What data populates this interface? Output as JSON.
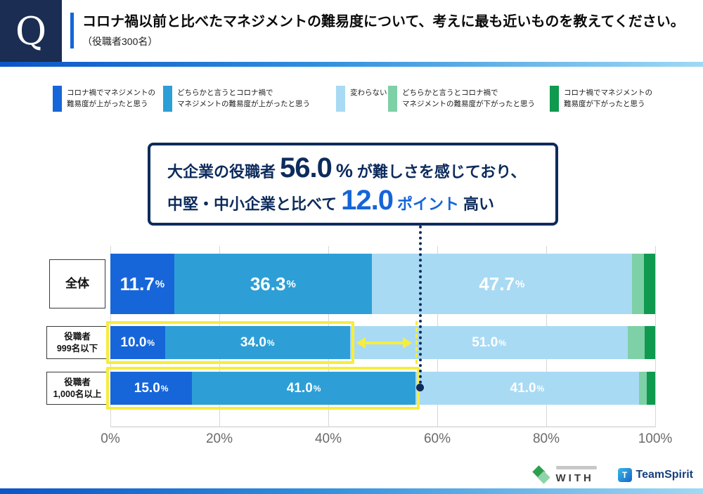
{
  "header": {
    "q_mark": "Q",
    "title_emphasis": "コロナ禍以前と比べたマネジメントの難易度",
    "title_rest": "について、考えに最も近いものを教えてください。",
    "subtitle": "（役職者300名）"
  },
  "legend": [
    {
      "color": "#1766d9",
      "label1": "コロナ禍でマネジメントの",
      "label2": "難易度が上がったと思う"
    },
    {
      "color": "#2d9fd6",
      "label1": "どちらかと言うとコロナ禍で",
      "label2": "マネジメントの難易度が上がったと思う"
    },
    {
      "color": "#a9daf3",
      "label1": "変わらない",
      "label2": ""
    },
    {
      "color": "#7ed0a6",
      "label1": "どちらかと言うとコロナ禍で",
      "label2": "マネジメントの難易度が下がったと思う"
    },
    {
      "color": "#0f9a50",
      "label1": "コロナ禍でマネジメントの",
      "label2": "難易度が下がったと思う"
    }
  ],
  "callout": {
    "line1_pre": "大企業の役職者",
    "line1_num": "56.0",
    "line1_unit": "%",
    "line1_post": "が難しさを感じており、",
    "line2_pre": "中堅・中小企業と比べて",
    "line2_num": "12.0",
    "line2_unit": "ポイント",
    "line2_post": "高い"
  },
  "row_labels": [
    {
      "line1": "全体",
      "line2": ""
    },
    {
      "line1": "役職者",
      "line2": "999名以下"
    },
    {
      "line1": "役職者",
      "line2": "1,000名以上"
    }
  ],
  "chart_data": {
    "type": "bar",
    "stacked": true,
    "orientation": "horizontal",
    "xlim": [
      0,
      100
    ],
    "x_ticks": [
      "0%",
      "20%",
      "40%",
      "60%",
      "80%",
      "100%"
    ],
    "categories": [
      "全体",
      "役職者999名以下",
      "役職者1,000名以上"
    ],
    "series": [
      {
        "name": "コロナ禍でマネジメントの難易度が上がったと思う",
        "color": "#1766d9",
        "values": [
          11.7,
          10.0,
          15.0
        ]
      },
      {
        "name": "どちらかと言うとコロナ禍でマネジメントの難易度が上がったと思う",
        "color": "#2d9fd6",
        "values": [
          36.3,
          34.0,
          41.0
        ]
      },
      {
        "name": "変わらない",
        "color": "#a9daf3",
        "values": [
          47.7,
          51.0,
          41.0
        ]
      },
      {
        "name": "どちらかと言うとコロナ禍でマネジメントの難易度が下がったと思う",
        "color": "#7ed0a6",
        "values": [
          2.3,
          3.0,
          1.5
        ],
        "estimated": true
      },
      {
        "name": "コロナ禍でマネジメントの難易度が下がったと思う",
        "color": "#0f9a50",
        "values": [
          2.0,
          2.0,
          1.5
        ],
        "estimated": true
      }
    ]
  },
  "annotations": {
    "highlight_color": "#f6ed3e",
    "pointer_color": "#0d2b5c",
    "highlights": [
      {
        "row": 1,
        "from_pct": 0,
        "to_pct": 44.0
      },
      {
        "row": 2,
        "from_pct": 0,
        "to_pct": 56.0
      }
    ],
    "diff_arrow": {
      "row": 1,
      "from_pct": 44.0,
      "to_pct": 56.0
    },
    "pointer_pct": 56.0
  },
  "footer": {
    "with_label": "WITH",
    "teamspirit_label": "TeamSpirit"
  }
}
